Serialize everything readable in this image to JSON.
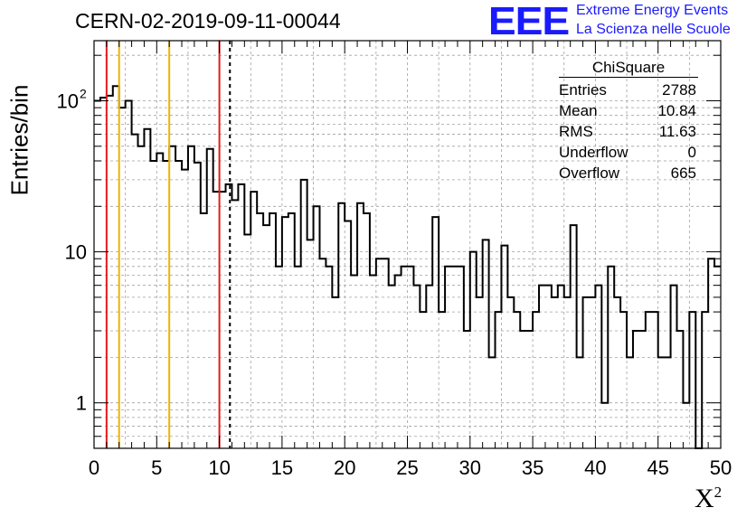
{
  "title": "CERN-02-2019-09-11-00044",
  "logo": {
    "mark": "EEE",
    "line1": "Extreme Energy Events",
    "line2": "La Scienza nelle Scuole"
  },
  "colors": {
    "histogram": "#000000",
    "red_line": "#e41a1c",
    "yellow_line": "#f0b400",
    "logo": "#1a1aff",
    "grid": "#a0a0a0"
  },
  "stats": {
    "header": "ChiSquare",
    "rows": [
      {
        "label": "Entries",
        "value": "2788"
      },
      {
        "label": "Mean",
        "value": "10.84"
      },
      {
        "label": "RMS",
        "value": "11.63"
      },
      {
        "label": "Underflow",
        "value": "0"
      },
      {
        "label": "Overflow",
        "value": "665"
      }
    ]
  },
  "chart_data": {
    "type": "bar",
    "style": "step-histogram",
    "ylabel": "Entries/bin",
    "xlabel": "X",
    "xlabel_superscript": "2",
    "xlim": [
      0,
      50
    ],
    "ylim": [
      0.5,
      250
    ],
    "yscale": "log",
    "grid": true,
    "bin_width": 0.5,
    "xticks": [
      "0",
      "5",
      "10",
      "15",
      "20",
      "25",
      "30",
      "35",
      "40",
      "45",
      "50"
    ],
    "yticks": [
      {
        "value": 1,
        "label": "1"
      },
      {
        "value": 10,
        "label": "10"
      },
      {
        "value": 100,
        "label": "10",
        "exp": "2"
      }
    ],
    "vertical_lines": [
      {
        "x": 1,
        "color": "red",
        "style": "solid"
      },
      {
        "x": 2,
        "color": "yellow",
        "style": "solid"
      },
      {
        "x": 6,
        "color": "yellow",
        "style": "solid"
      },
      {
        "x": 10,
        "color": "red",
        "style": "solid"
      },
      {
        "x": 10.84,
        "color": "black",
        "style": "dashed"
      }
    ],
    "values": [
      100,
      105,
      108,
      125,
      90,
      100,
      60,
      50,
      65,
      40,
      45,
      40,
      50,
      40,
      35,
      50,
      39,
      18,
      48,
      25,
      25,
      28,
      22,
      28,
      13,
      25,
      18,
      15,
      18,
      8,
      17,
      18,
      8,
      30,
      12,
      20,
      9,
      8,
      5,
      21,
      16,
      7,
      21,
      18,
      7,
      9,
      9,
      6,
      7,
      8,
      8,
      6,
      4,
      6,
      17,
      4,
      8,
      8,
      8,
      3,
      10,
      5,
      12,
      2,
      4,
      11,
      5,
      4,
      3,
      3,
      4,
      6,
      6,
      5,
      6,
      5,
      15,
      2,
      5,
      5,
      6,
      1,
      8,
      5,
      4,
      2,
      3,
      3,
      4,
      4,
      2,
      2,
      6,
      3,
      1,
      4,
      0.4,
      4,
      9,
      8
    ]
  }
}
